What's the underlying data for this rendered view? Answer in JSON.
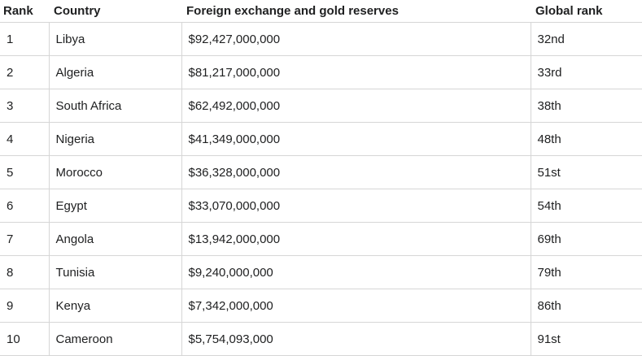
{
  "table": {
    "headers": [
      "Rank",
      "Country",
      "Foreign exchange and gold reserves",
      "Global rank"
    ],
    "rows": [
      [
        "1",
        "Libya",
        "$92,427,000,000",
        "32nd"
      ],
      [
        "2",
        "Algeria",
        "$81,217,000,000",
        "33rd"
      ],
      [
        "3",
        "South Africa",
        "$62,492,000,000",
        "38th"
      ],
      [
        "4",
        "Nigeria",
        "$41,349,000,000",
        "48th"
      ],
      [
        "5",
        "Morocco",
        "$36,328,000,000",
        "51st"
      ],
      [
        "6",
        "Egypt",
        "$33,070,000,000",
        "54th"
      ],
      [
        "7",
        "Angola",
        "$13,942,000,000",
        "69th"
      ],
      [
        "8",
        "Tunisia",
        "$9,240,000,000",
        "79th"
      ],
      [
        "9",
        "Kenya",
        "$7,342,000,000",
        "86th"
      ],
      [
        "10",
        "Cameroon",
        "$5,754,093,000",
        "91st"
      ]
    ]
  }
}
